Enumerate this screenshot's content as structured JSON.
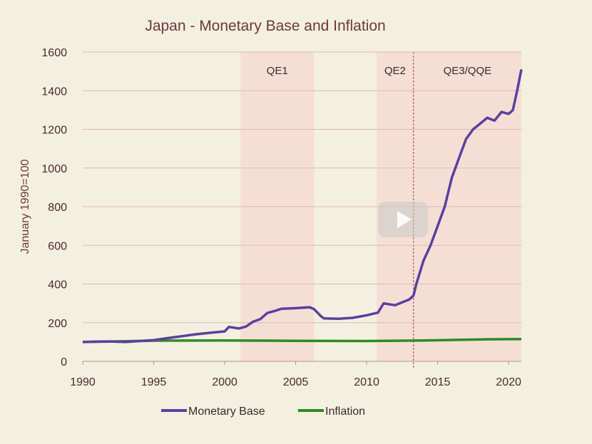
{
  "chart_data": {
    "type": "line",
    "title": "Japan - Monetary Base and Inflation",
    "xlabel": "",
    "ylabel": "January 1990=100",
    "xlim": [
      1990,
      2020.9
    ],
    "ylim": [
      0,
      1600
    ],
    "x_ticks": [
      "1990",
      "1995",
      "2000",
      "2005",
      "2010",
      "2015",
      "2020"
    ],
    "y_ticks": [
      "0",
      "200",
      "400",
      "600",
      "800",
      "1000",
      "1200",
      "1400",
      "1600"
    ],
    "grid": true,
    "legend": "bottom",
    "shaded_regions": [
      {
        "label": "QE1",
        "start": 2001.1,
        "end": 2006.3
      },
      {
        "label": "QE2",
        "start": 2010.7,
        "end": 2013.3
      },
      {
        "label": "QE3/QQE",
        "start": 2013.3,
        "end": 2020.9
      }
    ],
    "vline": 2013.3,
    "series": [
      {
        "name": "Monetary Base",
        "color": "#5b3fa0",
        "x": [
          1990,
          1991,
          1992,
          1993,
          1994,
          1995,
          1996,
          1997,
          1998,
          1999,
          2000,
          2000.3,
          2001,
          2001.5,
          2002,
          2002.5,
          2003,
          2003.5,
          2004,
          2005,
          2006,
          2006.3,
          2006.8,
          2007,
          2008,
          2009,
          2010,
          2010.8,
          2011.2,
          2012,
          2012.5,
          2013,
          2013.3,
          2013.5,
          2014,
          2014.5,
          2015,
          2015.5,
          2016,
          2016.5,
          2017,
          2017.5,
          2018,
          2018.5,
          2019,
          2019.5,
          2020,
          2020.3,
          2020.6,
          2020.9
        ],
        "values": [
          100,
          102,
          103,
          100,
          105,
          110,
          120,
          130,
          140,
          148,
          155,
          178,
          170,
          180,
          205,
          218,
          250,
          260,
          272,
          275,
          280,
          270,
          232,
          222,
          220,
          225,
          238,
          252,
          300,
          290,
          305,
          320,
          340,
          400,
          520,
          600,
          700,
          800,
          950,
          1050,
          1150,
          1200,
          1230,
          1260,
          1245,
          1290,
          1280,
          1300,
          1400,
          1510
        ]
      },
      {
        "name": "Inflation",
        "color": "#2e8b22",
        "x": [
          1990,
          1995,
          2000,
          2005,
          2010,
          2014,
          2018.5,
          2020.9
        ],
        "values": [
          100,
          107,
          108,
          106,
          105,
          108,
          114,
          115
        ]
      }
    ]
  }
}
